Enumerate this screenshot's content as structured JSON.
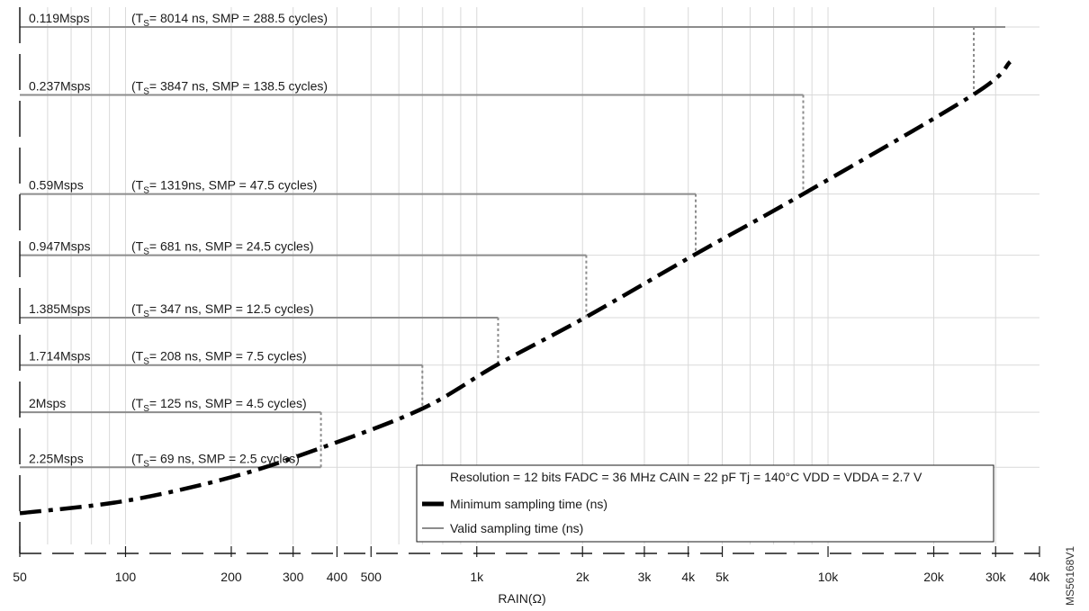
{
  "colors": {
    "grid": "#d9d9d9",
    "valid_line": "#8c8c8c",
    "min_curve": "#000000",
    "connector": "#8c8c8c",
    "frame": "#1a1a1a"
  },
  "figure_id": "MS56168V1",
  "chart_data": {
    "type": "line",
    "xlabel": "RAIN(Ω)",
    "x_scale": "log",
    "xlim": [
      50,
      40000
    ],
    "x_ticks": [
      {
        "value": 50,
        "label": "50"
      },
      {
        "value": 100,
        "label": "100"
      },
      {
        "value": 200,
        "label": "200"
      },
      {
        "value": 300,
        "label": "300"
      },
      {
        "value": 400,
        "label": "400"
      },
      {
        "value": 500,
        "label": "500"
      },
      {
        "value": 1000,
        "label": "1k"
      },
      {
        "value": 2000,
        "label": "2k"
      },
      {
        "value": 3000,
        "label": "3k"
      },
      {
        "value": 4000,
        "label": "4k"
      },
      {
        "value": 5000,
        "label": "5k"
      },
      {
        "value": 10000,
        "label": "10k"
      },
      {
        "value": 20000,
        "label": "20k"
      },
      {
        "value": 30000,
        "label": "30k"
      },
      {
        "value": 40000,
        "label": "40k"
      }
    ],
    "y_scale": "log",
    "ylim": [
      30,
      9000
    ],
    "grid": true,
    "legend": {
      "placement": "bottom-right",
      "header": "Resolution = 12 bits FADC = 36 MHz CAIN = 22 pF Tj = 140°C VDD = VDDA = 2.7 V",
      "entries": [
        {
          "name": "Minimum sampling time (ns)",
          "style": "dash-dot-thick"
        },
        {
          "name": "Valid sampling time (ns)",
          "style": "solid-thin"
        }
      ]
    },
    "valid_levels": [
      {
        "rate": "0.119Msps",
        "ts_ns": 8014,
        "ts_text": "= 8014 ns, SMP = 288.5 cycles)",
        "rain_max": 26000
      },
      {
        "rate": "0.237Msps",
        "ts_ns": 3847,
        "ts_text": "= 3847 ns, SMP = 138.5 cycles)",
        "rain_max": 8500
      },
      {
        "rate": "0.59Msps",
        "ts_ns": 1319,
        "ts_text": "= 1319ns, SMP = 47.5 cycles)",
        "rain_max": 4200
      },
      {
        "rate": "0.947Msps",
        "ts_ns": 681,
        "ts_text": "= 681 ns, SMP = 24.5 cycles)",
        "rain_max": 2050
      },
      {
        "rate": "1.385Msps",
        "ts_ns": 347,
        "ts_text": "= 347 ns, SMP = 12.5 cycles)",
        "rain_max": 1150
      },
      {
        "rate": "1.714Msps",
        "ts_ns": 208,
        "ts_text": "= 208 ns, SMP = 7.5 cycles)",
        "rain_max": 700
      },
      {
        "rate": "2Msps",
        "ts_ns": 125,
        "ts_text": "= 125 ns, SMP = 4.5 cycles)",
        "rain_max": 360
      },
      {
        "rate": "2.25Msps",
        "ts_ns": 69,
        "ts_text": "= 69 ns, SMP = 2.5 cycles)",
        "rain_max": 360
      }
    ],
    "ts_prefix": "(T",
    "ts_sub": "S",
    "series": [
      {
        "name": "Minimum sampling time (ns)",
        "x": [
          50,
          100,
          200,
          360,
          700,
          1150,
          2050,
          4200,
          8500,
          26000,
          33000
        ],
        "y": [
          42,
          48,
          62,
          85,
          130,
          210,
          350,
          690,
          1320,
          3870,
          5500
        ]
      }
    ]
  }
}
